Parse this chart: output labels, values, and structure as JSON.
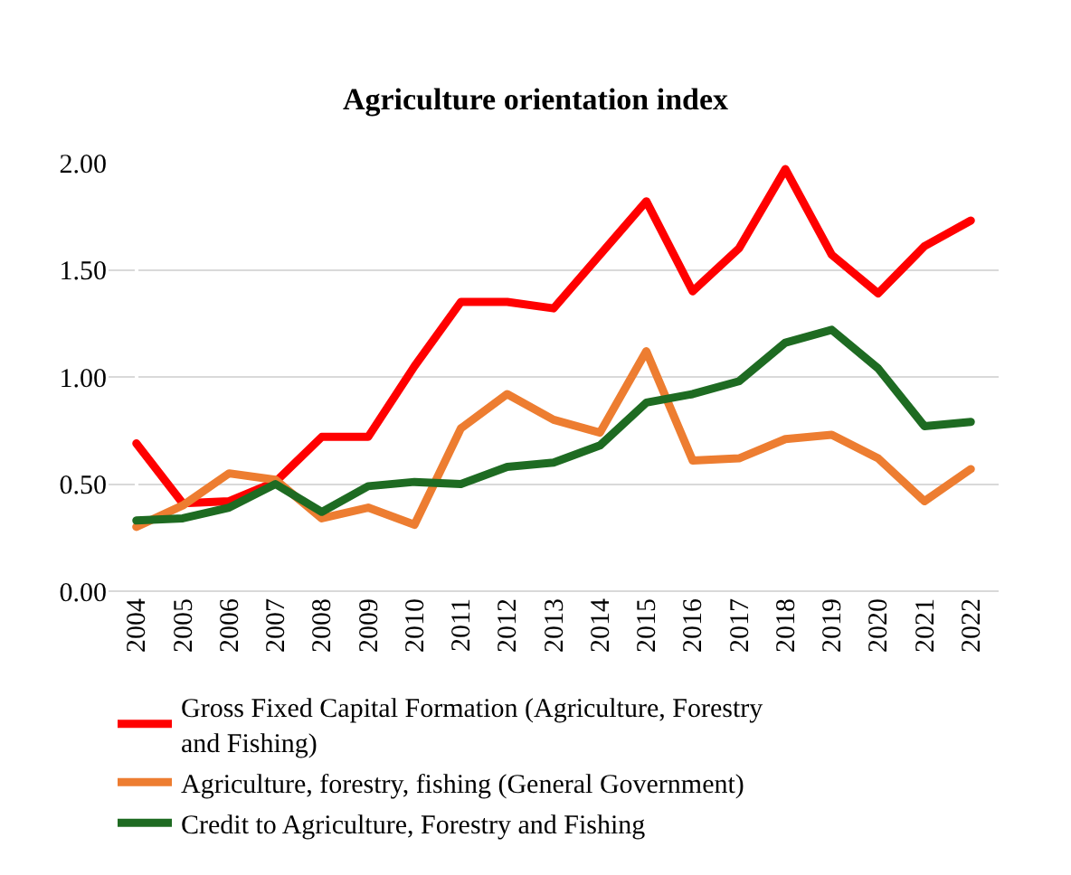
{
  "chart_data": {
    "type": "line",
    "title": "Agriculture orientation index",
    "categories": [
      "2004",
      "2005",
      "2006",
      "2007",
      "2008",
      "2009",
      "2010",
      "2011",
      "2012",
      "2013",
      "2014",
      "2015",
      "2016",
      "2017",
      "2018",
      "2019",
      "2020",
      "2021",
      "2022"
    ],
    "series": [
      {
        "name": "Gross Fixed Capital Formation (Agriculture, Forestry and Fishing)",
        "color": "#ff0000",
        "values": [
          0.69,
          0.41,
          0.42,
          0.51,
          0.72,
          0.72,
          1.05,
          1.35,
          1.35,
          1.32,
          1.57,
          1.82,
          1.4,
          1.6,
          1.97,
          1.57,
          1.39,
          1.61,
          1.73
        ]
      },
      {
        "name": "Agriculture, forestry, fishing (General Government)",
        "color": "#ed7d31",
        "values": [
          0.3,
          0.4,
          0.55,
          0.52,
          0.34,
          0.39,
          0.31,
          0.76,
          0.92,
          0.8,
          0.74,
          1.12,
          0.61,
          0.62,
          0.71,
          0.73,
          0.62,
          0.42,
          0.57
        ]
      },
      {
        "name": "Credit to Agriculture, Forestry and Fishing",
        "color": "#1e6b22",
        "values": [
          0.33,
          0.34,
          0.39,
          0.5,
          0.37,
          0.49,
          0.51,
          0.5,
          0.58,
          0.6,
          0.68,
          0.88,
          0.92,
          0.98,
          1.16,
          1.22,
          1.04,
          0.77,
          0.79
        ]
      }
    ],
    "ylim": [
      0,
      2.0
    ],
    "yticks": [
      {
        "value": 0,
        "label": "0.00"
      },
      {
        "value": 0.5,
        "label": "0.50"
      },
      {
        "value": 1.0,
        "label": "1.00"
      },
      {
        "value": 1.5,
        "label": "1.50"
      },
      {
        "value": 2.0,
        "label": "2.00"
      }
    ],
    "grid": "y",
    "legend": "bottom",
    "marker": "none",
    "line_style": "solid"
  }
}
